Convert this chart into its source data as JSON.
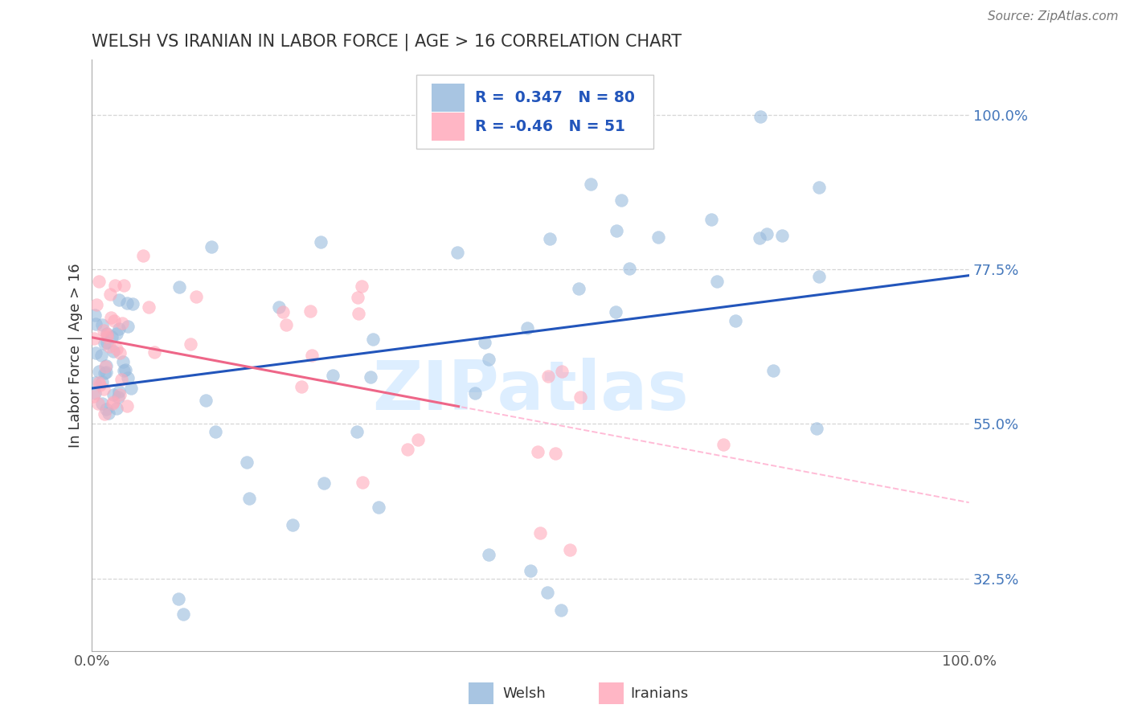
{
  "title": "WELSH VS IRANIAN IN LABOR FORCE | AGE > 16 CORRELATION CHART",
  "source": "Source: ZipAtlas.com",
  "ylabel": "In Labor Force | Age > 16",
  "xlim": [
    0.0,
    1.0
  ],
  "ylim": [
    0.22,
    1.08
  ],
  "yticks": [
    0.325,
    0.55,
    0.775,
    1.0
  ],
  "ytick_labels": [
    "32.5%",
    "55.0%",
    "77.5%",
    "100.0%"
  ],
  "xtick_labels": [
    "0.0%",
    "100.0%"
  ],
  "welsh_R": 0.347,
  "welsh_N": 80,
  "iranian_R": -0.46,
  "iranian_N": 51,
  "blue_scatter_color": "#99BBDD",
  "pink_scatter_color": "#FFAABB",
  "blue_line_color": "#2255BB",
  "pink_line_color": "#EE6688",
  "pink_dash_color": "#FFAACC",
  "watermark": "ZIPatlas",
  "watermark_color": "#DDEEFF",
  "grid_color": "#CCCCCC",
  "background_color": "#FFFFFF",
  "title_color": "#333333",
  "tick_color": "#4477BB",
  "legend_text_color": "#2255BB"
}
